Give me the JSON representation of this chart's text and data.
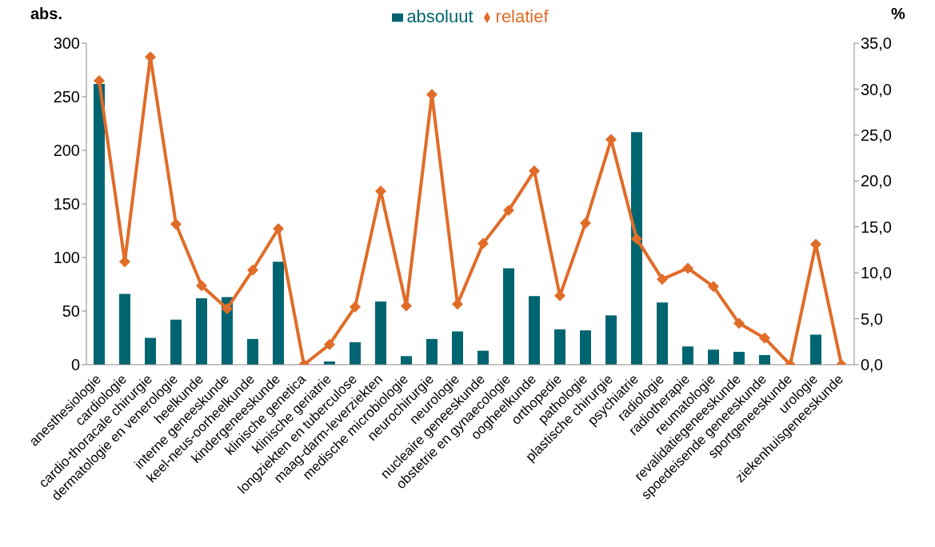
{
  "chart_data": {
    "type": "bar",
    "ylabel": "abs.",
    "y2label": "%",
    "categories": [
      "anesthesiologie",
      "cardiologie",
      "cardio-thoracale chirurgie",
      "dermatologie en venerologie",
      "heelkunde",
      "interne geneeskunde",
      "keel-neus-oorheelkunde",
      "kindergeneeskunde",
      "klinische genetica",
      "klinische geriatrie",
      "longziekten en tuberculose",
      "maag-darm-leverziekten",
      "medische microbiologie",
      "neurochirurgie",
      "neurologie",
      "nucleaire geneeskunde",
      "obstetrie en gynaecologie",
      "oogheelkunde",
      "orthopedie",
      "pathologie",
      "plastische chirurgie",
      "psychiatrie",
      "radiologie",
      "radiotherapie",
      "reumatologie",
      "revalidatiegeneeskunde",
      "spoedeisende geneeskunde",
      "sportgeneeskunde",
      "urologie",
      "ziekenhuisgeneeskunde"
    ],
    "series": [
      {
        "name": "absoluut",
        "color": "#006570",
        "values": [
          262,
          66,
          25,
          42,
          62,
          63,
          24,
          96,
          0,
          3,
          21,
          59,
          8,
          24,
          31,
          13,
          90,
          64,
          33,
          32,
          46,
          217,
          58,
          17,
          14,
          12,
          9,
          0,
          28,
          0
        ]
      },
      {
        "name": "relatief",
        "type": "line",
        "axis": "y2",
        "color": "#e06c28",
        "marker": "diamond",
        "values": [
          30.9,
          11.2,
          33.5,
          15.3,
          8.6,
          6.1,
          10.3,
          14.8,
          0,
          2.2,
          6.3,
          18.9,
          6.4,
          29.4,
          6.6,
          13.2,
          16.8,
          21.1,
          7.5,
          15.4,
          24.5,
          13.7,
          9.3,
          10.5,
          8.5,
          4.5,
          2.9,
          0,
          13.1,
          0
        ]
      }
    ],
    "ylim": [
      0,
      300
    ],
    "yticks": [
      0,
      50,
      100,
      150,
      200,
      250,
      300
    ],
    "y2lim": [
      0,
      35
    ],
    "y2ticks": [
      {
        "value": 0,
        "label": "0,0"
      },
      {
        "value": 5,
        "label": "5,0"
      },
      {
        "value": 10,
        "label": "10,0"
      },
      {
        "value": 15,
        "label": "15,0"
      },
      {
        "value": 20,
        "label": "20,0"
      },
      {
        "value": 25,
        "label": "25,0"
      },
      {
        "value": 30,
        "label": "30,0"
      },
      {
        "value": 35,
        "label": "35,0"
      }
    ],
    "legend": "top",
    "grid": false
  }
}
